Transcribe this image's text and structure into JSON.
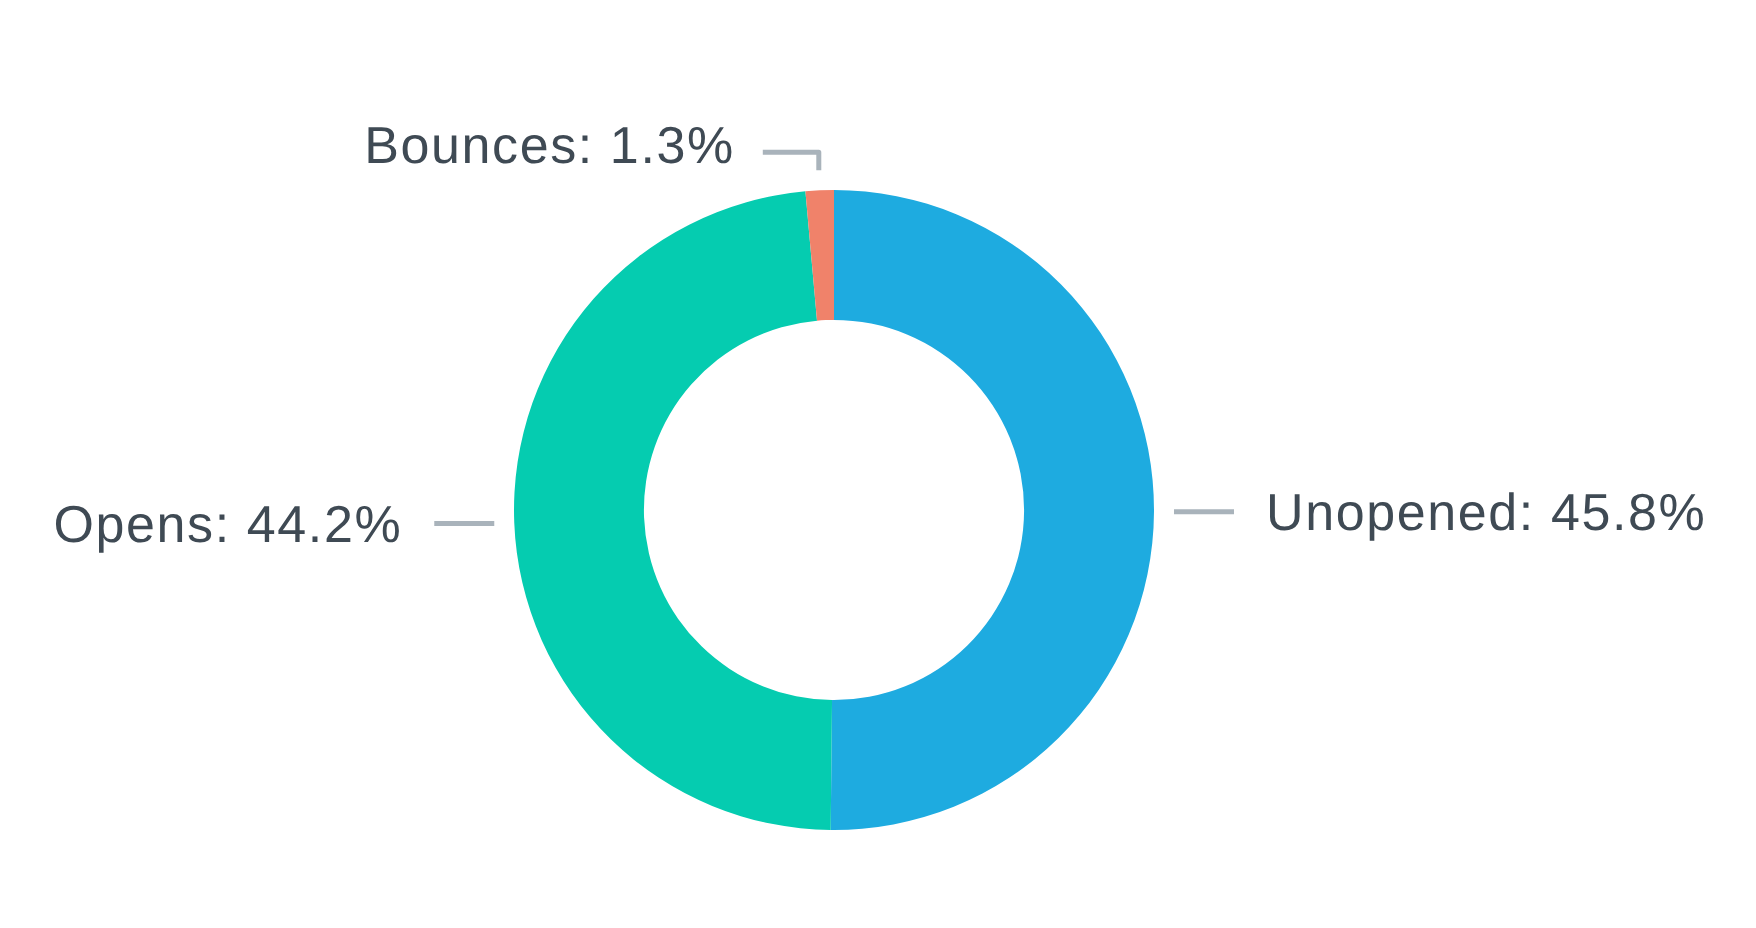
{
  "chart_data": {
    "type": "donut",
    "categories": [
      "Unopened",
      "Opens",
      "Bounces"
    ],
    "values": [
      45.8,
      44.2,
      1.3
    ],
    "colors": [
      "#1eabe0",
      "#05ccb0",
      "#f0826a"
    ],
    "value_labels": [
      "45.8%",
      "44.2%",
      "1.3%"
    ]
  }
}
